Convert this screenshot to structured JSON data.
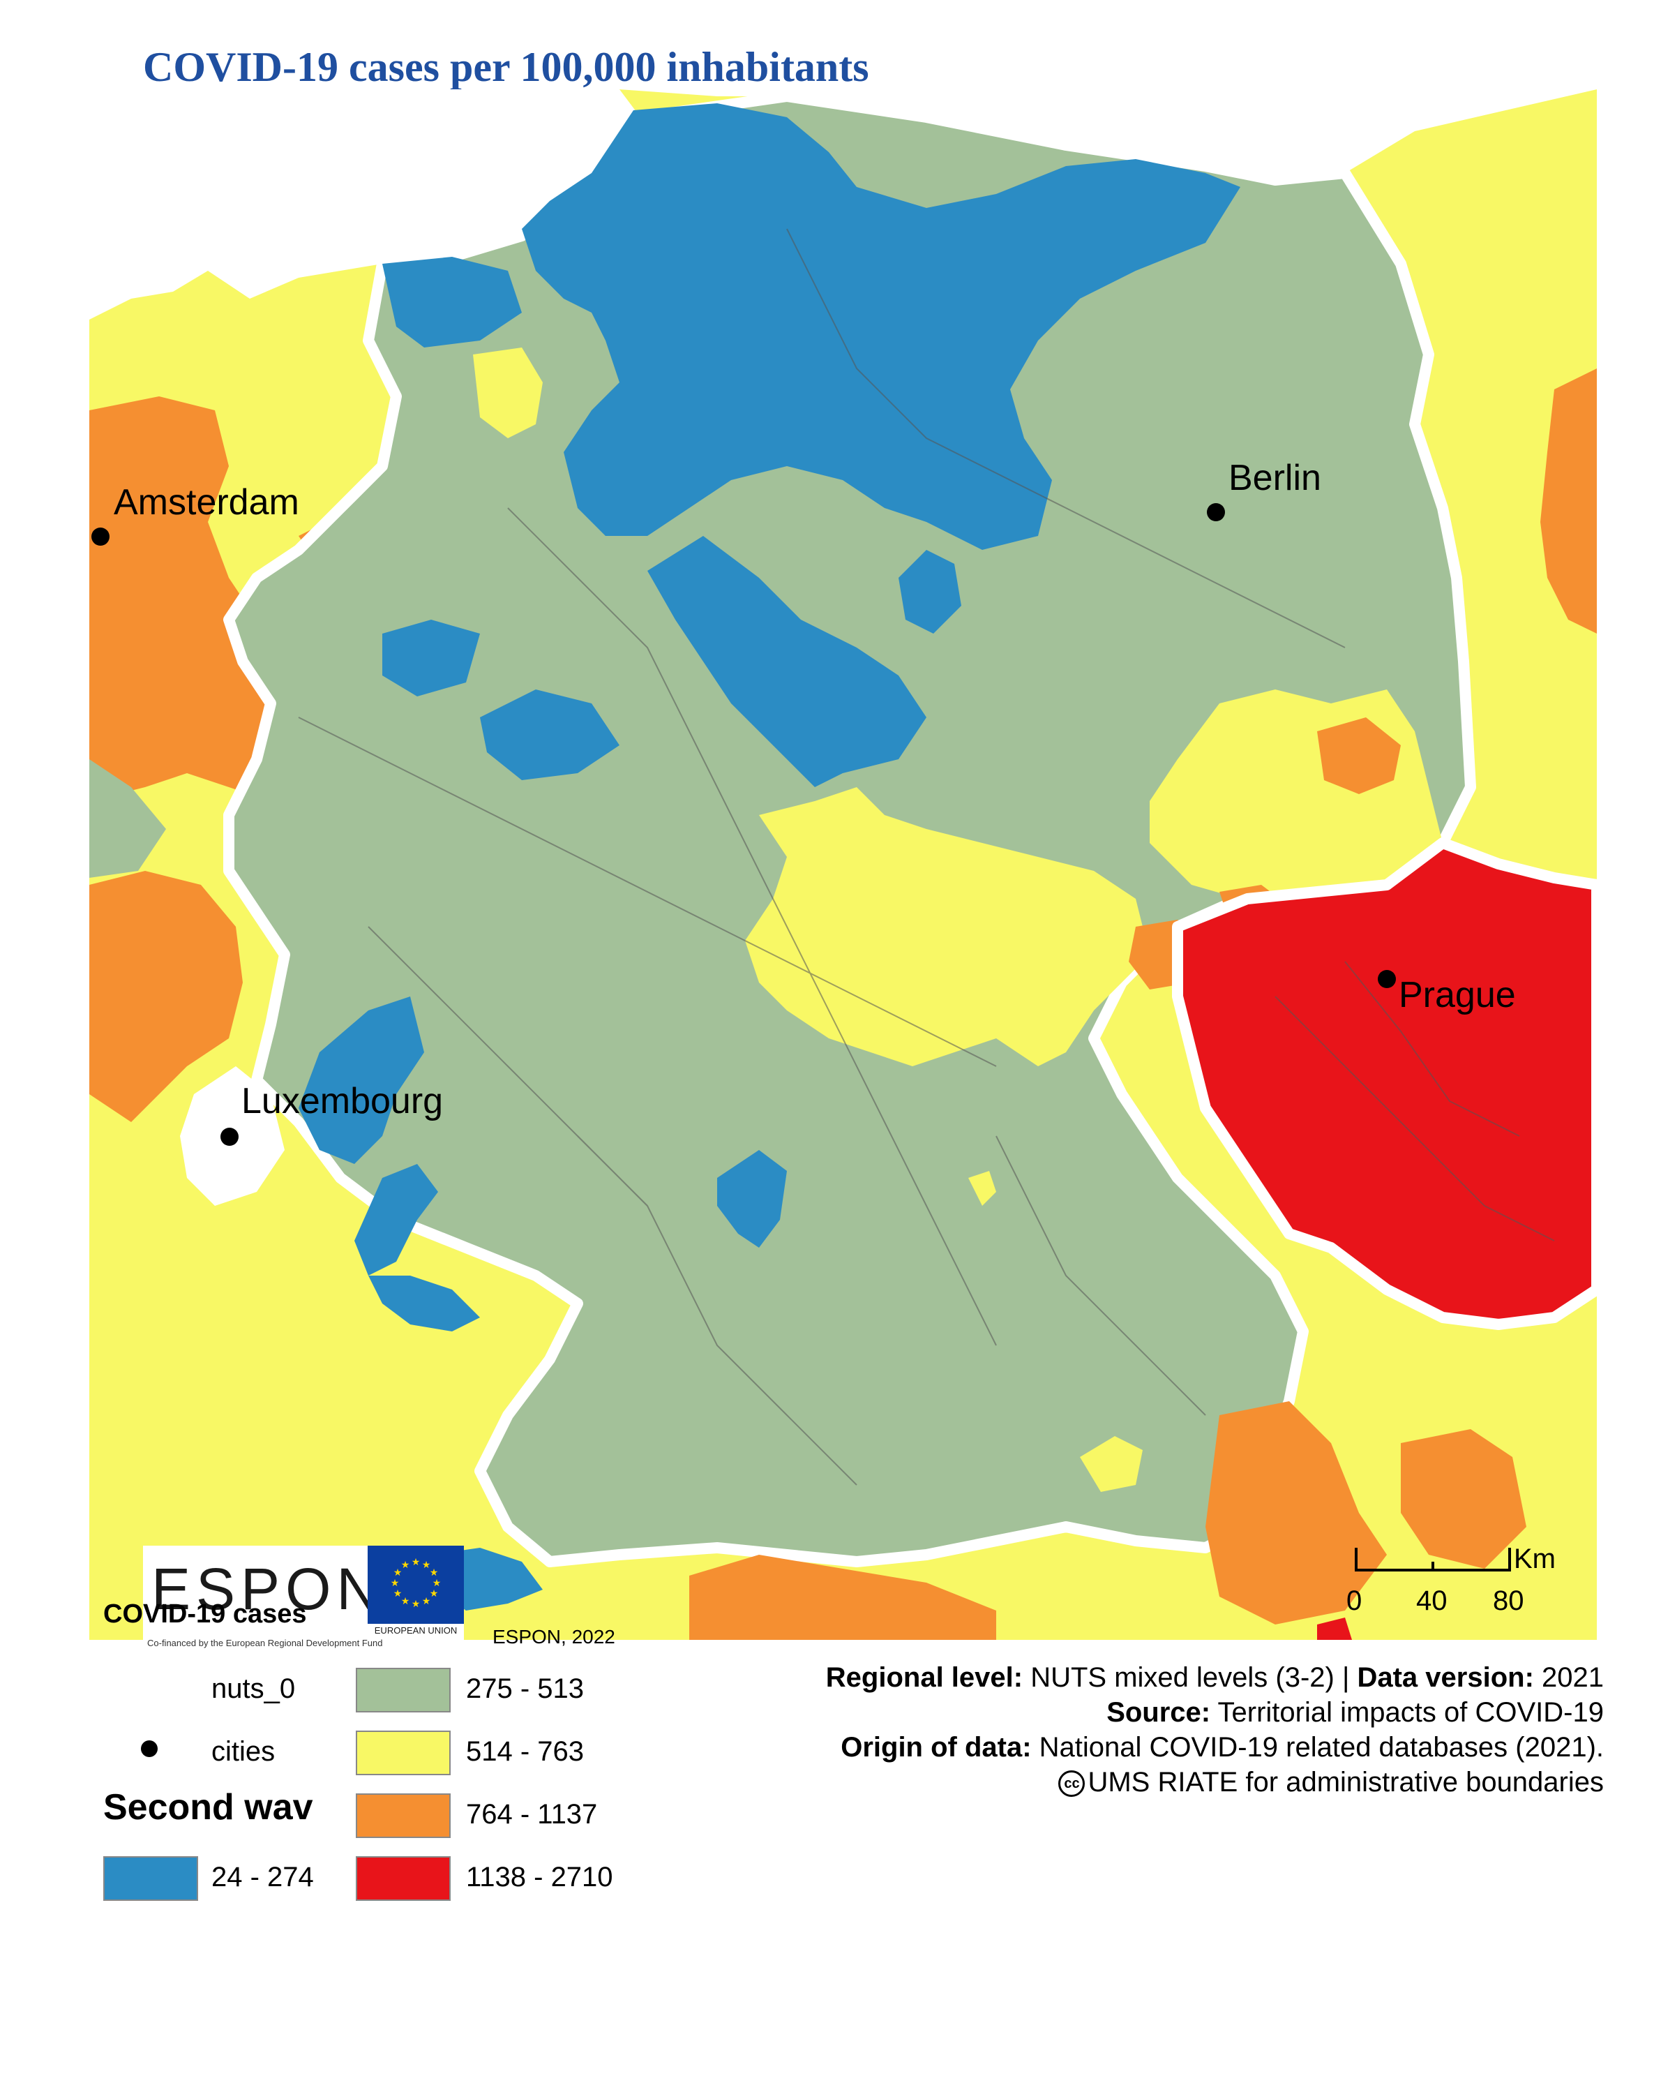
{
  "title": "COVID-19 cases per 100,000 inhabitants",
  "cities": [
    {
      "name": "Amsterdam"
    },
    {
      "name": "Berlin"
    },
    {
      "name": "Prague"
    },
    {
      "name": "Luxembourg"
    }
  ],
  "logo": {
    "espon_word": "ESPON",
    "espon_tagline": "Co-financed by the European Regional Development Fund",
    "eu_caption": "EUROPEAN UNION"
  },
  "legend": {
    "layer_title": "COVID-19 cases",
    "credit": "ESPON, 2022",
    "nuts_label": "nuts_0",
    "cities_label": "cities",
    "section_title": "Second wav",
    "classes": [
      {
        "range": "24 - 274",
        "color": "#2b8cc4"
      },
      {
        "range": "275 - 513",
        "color": "#a3c199"
      },
      {
        "range": "514 - 763",
        "color": "#f8f865"
      },
      {
        "range": "764 - 1137",
        "color": "#f58f31"
      },
      {
        "range": "1138 - 2710",
        "color": "#e8141a"
      }
    ]
  },
  "scale": {
    "unit": "Km",
    "ticks": [
      "0",
      "40",
      "80"
    ]
  },
  "info": {
    "line1_bold1": "Regional level:",
    "line1_text1": " NUTS mixed levels (3-2) | ",
    "line1_bold2": "Data version:",
    "line1_text2": " 2021",
    "line2_bold": "Source:",
    "line2_text": " Territorial impacts of COVID-19",
    "line3_bold": "Origin of data:",
    "line3_text": " National COVID-19 related databases (2021).",
    "line4_cc": "cc",
    "line4_text": "UMS RIATE for administrative boundaries"
  }
}
